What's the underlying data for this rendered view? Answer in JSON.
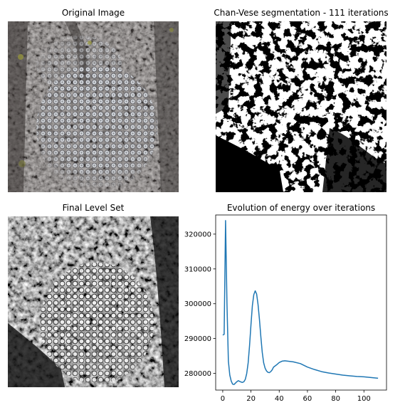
{
  "panels": {
    "original": {
      "title": "Original Image",
      "icon": "lichen-photo"
    },
    "segmentation": {
      "title": "Chan-Vese segmentation - 111 iterations",
      "icon": "binary-mask"
    },
    "levelset": {
      "title": "Final Level Set",
      "icon": "grayscale-level-set"
    }
  },
  "chart_data": {
    "type": "line",
    "title": "Evolution of energy over iterations",
    "xlabel": "",
    "ylabel": "",
    "xlim": [
      -5,
      116
    ],
    "ylim": [
      275200,
      325500
    ],
    "xticks": [
      0,
      20,
      40,
      60,
      80,
      100
    ],
    "yticks": [
      280000,
      290000,
      300000,
      310000,
      320000
    ],
    "grid": false,
    "color": "#1f77b4",
    "series": [
      {
        "x": [
          0,
          1,
          2,
          3,
          4,
          5,
          6,
          7,
          8,
          9,
          10,
          11,
          12,
          13,
          14,
          15,
          16,
          17,
          18,
          19,
          20,
          21,
          22,
          23,
          24,
          25,
          26,
          27,
          28,
          29,
          30,
          31,
          32,
          33,
          34,
          35,
          36,
          38,
          40,
          42,
          44,
          46,
          48,
          50,
          55,
          60,
          65,
          70,
          75,
          80,
          85,
          90,
          95,
          100,
          105,
          110
        ],
        "y": [
          291000,
          291200,
          323900,
          300000,
          283500,
          279500,
          277800,
          276900,
          276800,
          277200,
          277600,
          277900,
          277700,
          277500,
          277400,
          277600,
          278300,
          280000,
          283000,
          288000,
          294000,
          299500,
          302600,
          303700,
          302800,
          299800,
          295500,
          290500,
          286000,
          283000,
          281500,
          280700,
          280300,
          280200,
          280500,
          281000,
          281800,
          282400,
          283100,
          283500,
          283600,
          283500,
          283400,
          283300,
          282800,
          281800,
          281100,
          280500,
          280100,
          279800,
          279500,
          279300,
          279100,
          279000,
          278800,
          278600
        ]
      }
    ]
  }
}
